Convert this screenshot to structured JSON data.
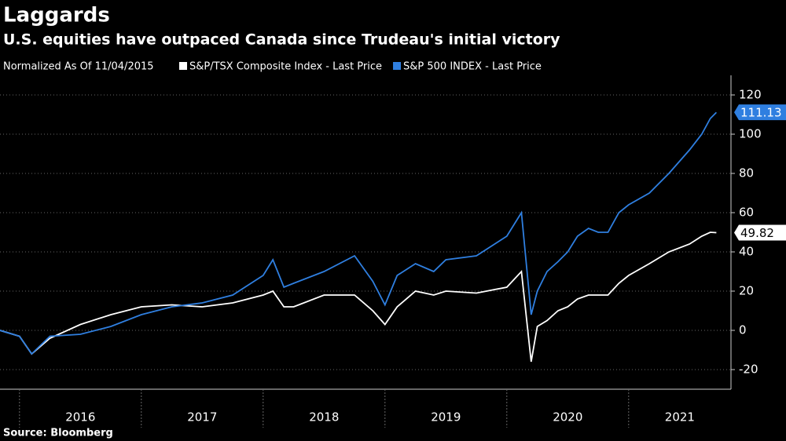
{
  "chart_data": {
    "type": "line",
    "title": "Laggards",
    "subtitle": "U.S. equities have outpaced Canada since Trudeau's initial victory",
    "legend_title": "Normalized As Of 11/04/2015",
    "source": "Source: Bloomberg",
    "x": [
      2015.84,
      2016.0,
      2016.1,
      2016.25,
      2016.5,
      2016.75,
      2017.0,
      2017.25,
      2017.5,
      2017.75,
      2018.0,
      2018.08,
      2018.17,
      2018.25,
      2018.5,
      2018.75,
      2018.9,
      2019.0,
      2019.1,
      2019.25,
      2019.4,
      2019.5,
      2019.75,
      2020.0,
      2020.12,
      2020.2,
      2020.25,
      2020.33,
      2020.42,
      2020.5,
      2020.58,
      2020.67,
      2020.75,
      2020.83,
      2020.92,
      2021.0,
      2021.17,
      2021.33,
      2021.5,
      2021.6,
      2021.67,
      2021.72
    ],
    "series": [
      {
        "name": "S&P/TSX Composite Index - Last Price",
        "color": "#ffffff",
        "values": [
          0,
          -3,
          -12,
          -4,
          3,
          8,
          12,
          13,
          12,
          14,
          18,
          20,
          12,
          12,
          18,
          18,
          10,
          3,
          12,
          20,
          18,
          20,
          19,
          22,
          30,
          -16,
          2,
          5,
          10,
          12,
          16,
          18,
          18,
          18,
          24,
          28,
          34,
          40,
          44,
          48,
          50,
          49.82
        ]
      },
      {
        "name": "S&P 500 INDEX - Last Price",
        "color": "#2f7fe0",
        "values": [
          0,
          -3,
          -12,
          -3,
          -2,
          2,
          8,
          12,
          14,
          18,
          28,
          36,
          22,
          24,
          30,
          38,
          25,
          13,
          28,
          34,
          30,
          36,
          38,
          48,
          60,
          8,
          20,
          30,
          35,
          40,
          48,
          52,
          50,
          50,
          60,
          64,
          70,
          80,
          92,
          100,
          108,
          111.13
        ]
      }
    ],
    "xlim": [
      2015.84,
      2021.84
    ],
    "xticks": [
      {
        "value": 2016.5,
        "label": "2016"
      },
      {
        "value": 2017.5,
        "label": "2017"
      },
      {
        "value": 2018.5,
        "label": "2018"
      },
      {
        "value": 2019.5,
        "label": "2019"
      },
      {
        "value": 2020.5,
        "label": "2020"
      },
      {
        "value": 2021.42,
        "label": "2021"
      }
    ],
    "year_separators": [
      2016,
      2017,
      2018,
      2019,
      2020,
      2021
    ],
    "ylim": [
      -30,
      130
    ],
    "yticks": [
      -20,
      0,
      20,
      40,
      60,
      80,
      100,
      120
    ],
    "grid": true
  }
}
